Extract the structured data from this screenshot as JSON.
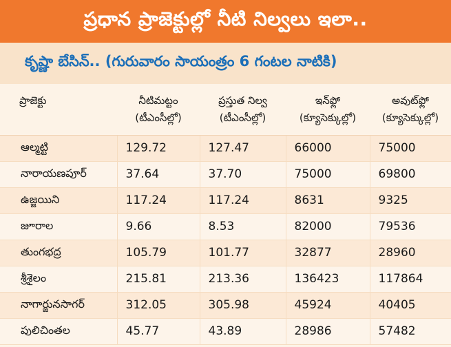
{
  "banner": {
    "title": "ప్రధాన ప్రాజెక్టుల్లో నీటి నిల్వలు ఇలా.."
  },
  "subtitle": {
    "text": "కృష్ణా బేసిన్.. (గురువారం సాయంత్రం 6 గంటల నాటికి)"
  },
  "columns": [
    {
      "line1": "ప్రాజెక్టు",
      "line2": ""
    },
    {
      "line1": "నీటిమట్టం",
      "line2": "(టీఎంసీల్లో)"
    },
    {
      "line1": "ప్రస్తుత నిల్వ",
      "line2": "(టీఎంసీల్లో)"
    },
    {
      "line1": "ఇన్‌ఫ్లో",
      "line2": "(క్యూసెక్కుల్లో)"
    },
    {
      "line1": "అవుట్‌ఫ్లో",
      "line2": "(క్యూసెక్కుల్లో)"
    }
  ],
  "rows": [
    {
      "project": "ఆల్మట్టి",
      "level": "129.72",
      "storage": "127.47",
      "inflow": "66000",
      "outflow": "75000"
    },
    {
      "project": "నారాయణపూర్",
      "level": "37.64",
      "storage": "37.70",
      "inflow": "75000",
      "outflow": "69800"
    },
    {
      "project": "ఉజ్జయిని",
      "level": "117.24",
      "storage": "117.24",
      "inflow": "8631",
      "outflow": "9325"
    },
    {
      "project": "జూరాల",
      "level": "9.66",
      "storage": "8.53",
      "inflow": "82000",
      "outflow": "79536"
    },
    {
      "project": "తుంగభద్ర",
      "level": "105.79",
      "storage": "101.77",
      "inflow": "32877",
      "outflow": "28960"
    },
    {
      "project": "శ్రీశైలం",
      "level": "215.81",
      "storage": "213.36",
      "inflow": "136423",
      "outflow": "117864"
    },
    {
      "project": "నాగార్జునసాగర్",
      "level": "312.05",
      "storage": "305.98",
      "inflow": "45924",
      "outflow": "40405"
    },
    {
      "project": "పులిచింతల",
      "level": "45.77",
      "storage": "43.89",
      "inflow": "28986",
      "outflow": "57482"
    }
  ],
  "colors": {
    "banner": "#f0782d",
    "subtitle_text": "#1c6fb8",
    "row_tint": "#fce9d6"
  }
}
